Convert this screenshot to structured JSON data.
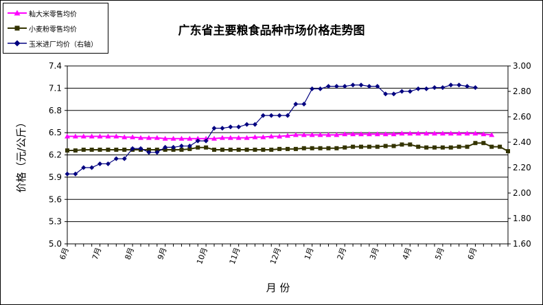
{
  "chart_data": {
    "type": "line",
    "title": "广东省主要粮食品种市场价格走势图",
    "xlabel": "月  份",
    "ylabel": "价格（元/公斤）",
    "ylim": [
      5.0,
      7.4
    ],
    "y_ticks": [
      5.0,
      5.3,
      5.6,
      5.9,
      6.2,
      6.5,
      6.8,
      7.1,
      7.4
    ],
    "y_tick_labels": [
      "5.0",
      "5.3",
      "5.6",
      "5.9",
      "6.2",
      "6.5",
      "6.8",
      "7.1",
      "7.4"
    ],
    "y2lim": [
      1.6,
      3.0
    ],
    "y2_ticks": [
      1.6,
      1.8,
      2.0,
      2.2,
      2.4,
      2.6,
      2.8,
      3.0
    ],
    "y2_tick_labels": [
      "1.60",
      "1.80",
      "2.00",
      "2.20",
      "2.40",
      "2.60",
      "2.80",
      "3.00"
    ],
    "grid": "horizontal",
    "legend_position": "top-left",
    "month_labels": [
      {
        "label": "6月",
        "index": 0
      },
      {
        "label": "7月",
        "index": 4
      },
      {
        "label": "8月",
        "index": 8
      },
      {
        "label": "9月",
        "index": 12
      },
      {
        "label": "10月",
        "index": 17
      },
      {
        "label": "11月",
        "index": 21
      },
      {
        "label": "12月",
        "index": 26
      },
      {
        "label": "1月",
        "index": 30
      },
      {
        "label": "2月",
        "index": 34
      },
      {
        "label": "3月",
        "index": 38
      },
      {
        "label": "4月",
        "index": 42
      },
      {
        "label": "5月",
        "index": 46
      },
      {
        "label": "6月",
        "index": 50
      }
    ],
    "series": [
      {
        "name": "籼大米零售均价",
        "axis": "left",
        "color": "#ff00ff",
        "marker": "triangle",
        "values": [
          6.45,
          6.45,
          6.45,
          6.45,
          6.45,
          6.45,
          6.45,
          6.44,
          6.44,
          6.43,
          6.43,
          6.43,
          6.42,
          6.42,
          6.42,
          6.42,
          6.42,
          6.42,
          6.42,
          6.43,
          6.43,
          6.43,
          6.43,
          6.44,
          6.44,
          6.45,
          6.45,
          6.46,
          6.47,
          6.47,
          6.47,
          6.47,
          6.47,
          6.47,
          6.48,
          6.48,
          6.48,
          6.48,
          6.48,
          6.48,
          6.48,
          6.49,
          6.49,
          6.49,
          6.49,
          6.49,
          6.49,
          6.49,
          6.49,
          6.49,
          6.49,
          6.48,
          6.47
        ]
      },
      {
        "name": "小麦粉零售均价",
        "axis": "left",
        "color": "#333300",
        "marker": "square",
        "values": [
          6.26,
          6.26,
          6.27,
          6.27,
          6.27,
          6.27,
          6.27,
          6.27,
          6.27,
          6.27,
          6.27,
          6.27,
          6.27,
          6.27,
          6.27,
          6.28,
          6.3,
          6.3,
          6.27,
          6.27,
          6.27,
          6.27,
          6.27,
          6.27,
          6.27,
          6.27,
          6.28,
          6.28,
          6.28,
          6.29,
          6.29,
          6.29,
          6.29,
          6.29,
          6.3,
          6.31,
          6.31,
          6.31,
          6.31,
          6.32,
          6.32,
          6.34,
          6.34,
          6.31,
          6.3,
          6.3,
          6.3,
          6.3,
          6.31,
          6.31,
          6.36,
          6.36,
          6.31,
          6.31,
          6.25
        ]
      },
      {
        "name": "玉米进厂均价（右轴）",
        "axis": "right",
        "color": "#000080",
        "marker": "diamond",
        "values": [
          2.15,
          2.15,
          2.2,
          2.2,
          2.23,
          2.23,
          2.27,
          2.27,
          2.35,
          2.35,
          2.32,
          2.32,
          2.36,
          2.36,
          2.37,
          2.37,
          2.41,
          2.41,
          2.51,
          2.51,
          2.52,
          2.52,
          2.54,
          2.54,
          2.61,
          2.61,
          2.61,
          2.61,
          2.7,
          2.7,
          2.82,
          2.82,
          2.84,
          2.84,
          2.84,
          2.85,
          2.85,
          2.84,
          2.84,
          2.78,
          2.78,
          2.8,
          2.8,
          2.82,
          2.82,
          2.83,
          2.83,
          2.85,
          2.85,
          2.84,
          2.83
        ]
      }
    ]
  }
}
